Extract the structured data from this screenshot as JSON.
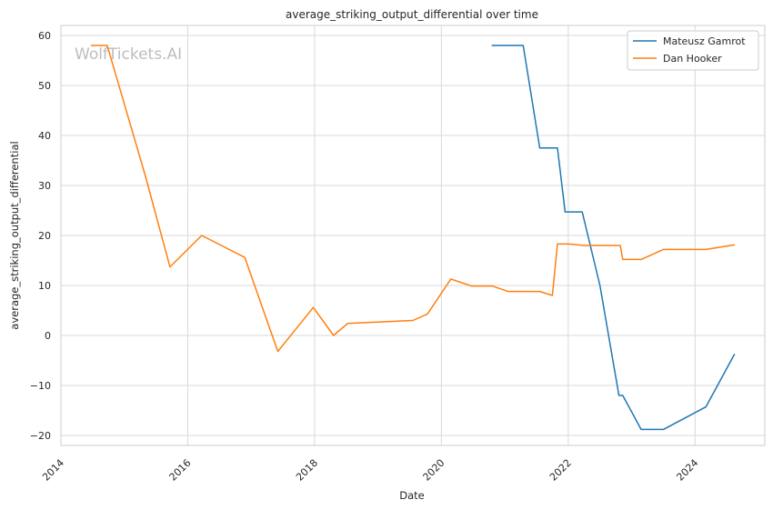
{
  "chart_data": {
    "type": "line",
    "title": "average_striking_output_differential over time",
    "xlabel": "Date",
    "ylabel": "average_striking_output_differential",
    "watermark": "WolfTickets.AI",
    "xlim": [
      2014.0,
      2025.1
    ],
    "ylim": [
      -22,
      62
    ],
    "x_ticks": [
      2014,
      2016,
      2018,
      2020,
      2022,
      2024
    ],
    "y_ticks": [
      -20,
      -10,
      0,
      10,
      20,
      30,
      40,
      50,
      60
    ],
    "grid": true,
    "legend_position": "top-right",
    "series": [
      {
        "name": "Mateusz Gamrot",
        "color": "#1f77b4",
        "x": [
          2020.8,
          2021.29,
          2021.55,
          2021.83,
          2021.95,
          2022.22,
          2022.5,
          2022.8,
          2022.86,
          2023.15,
          2023.5,
          2024.17,
          2024.62
        ],
        "y": [
          58,
          58,
          37.5,
          37.5,
          24.7,
          24.7,
          10,
          -12,
          -12,
          -18.8,
          -18.8,
          -14.3,
          -3.8
        ]
      },
      {
        "name": "Dan Hooker",
        "color": "#ff7f0e",
        "x": [
          2014.48,
          2014.73,
          2015.33,
          2015.72,
          2016.22,
          2016.9,
          2017.42,
          2017.98,
          2018.3,
          2018.52,
          2019.55,
          2019.78,
          2020.15,
          2020.47,
          2020.8,
          2021.05,
          2021.55,
          2021.75,
          2021.83,
          2022.0,
          2022.25,
          2022.82,
          2022.86,
          2023.15,
          2023.5,
          2024.17,
          2024.62
        ],
        "y": [
          58,
          58,
          32,
          13.7,
          20,
          15.6,
          -3.2,
          5.6,
          0,
          2.4,
          3,
          4.3,
          11.3,
          9.9,
          9.9,
          8.8,
          8.8,
          8,
          18.3,
          18.3,
          18,
          18,
          15.2,
          15.2,
          17.2,
          17.2,
          18.1
        ]
      }
    ]
  }
}
